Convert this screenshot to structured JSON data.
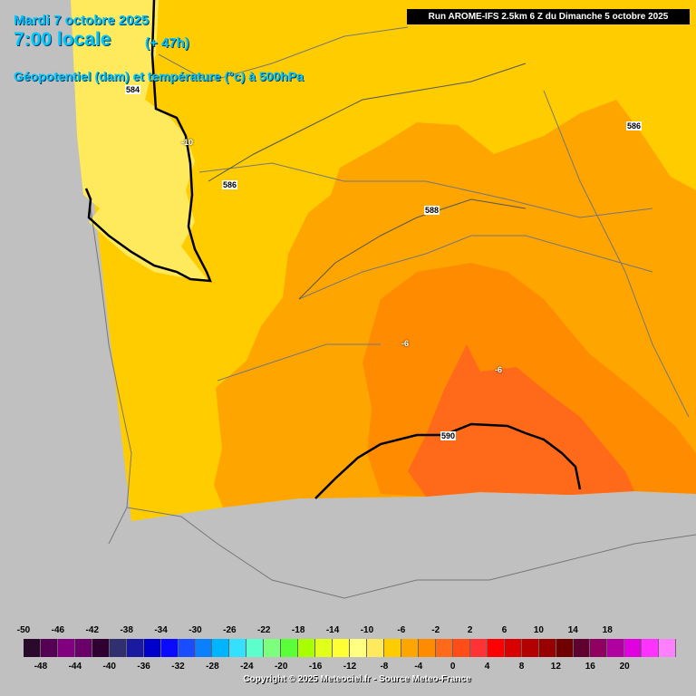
{
  "header": {
    "date": "Mardi 7 octobre 2025",
    "time": "7:00 locale",
    "lead": "(+ 47h)",
    "parameter": "Géopotentiel (dam) et température (°c) à 500hPa",
    "run": "Run AROME-IFS 2.5km 6 Z du Dimanche 5 octobre 2025"
  },
  "map": {
    "geopotential_labels": [
      "584",
      "586",
      "586",
      "588",
      "590"
    ],
    "temperature_labels": [
      "-10",
      "-6",
      "-6"
    ],
    "colors": {
      "background": "#c0c0c0",
      "t_minus_12": "#ffe95c",
      "t_minus_10": "#ffcc00",
      "t_minus_8": "#ffa500",
      "t_minus_6": "#ff8c00",
      "t_minus_4": "#ff6a1a"
    }
  },
  "legend": {
    "top_labels": [
      "-50",
      "-46",
      "-42",
      "-38",
      "-34",
      "-30",
      "-26",
      "-22",
      "-18",
      "-14",
      "-10",
      "-6",
      "-2",
      "2",
      "6",
      "10",
      "14",
      "18"
    ],
    "bottom_labels": [
      "-48",
      "-44",
      "-40",
      "-36",
      "-32",
      "-28",
      "-24",
      "-20",
      "-16",
      "-12",
      "-8",
      "-4",
      "0",
      "4",
      "8",
      "12",
      "16",
      "20"
    ],
    "colors": [
      "#2a0a2a",
      "#550055",
      "#800080",
      "#6a006a",
      "#300030",
      "#303070",
      "#1a1aa0",
      "#0000cc",
      "#0a0aff",
      "#1a4dff",
      "#0a80ff",
      "#00b4ff",
      "#33e0ff",
      "#5cffcc",
      "#7cff7c",
      "#5aff3a",
      "#a8ff00",
      "#e0ff1a",
      "#ffff33",
      "#ffff80",
      "#ffe95c",
      "#ffcc00",
      "#ffa500",
      "#ff8c00",
      "#ff6a1a",
      "#ff4d1a",
      "#ff3333",
      "#ff0000",
      "#d90000",
      "#b30000",
      "#990000",
      "#700000",
      "#600030",
      "#900060",
      "#b000a0",
      "#e000e0",
      "#ff33ff",
      "#ff80ff"
    ]
  },
  "copyright": "Copyright © 2025 Meteociel.fr - Source Meteo-France"
}
